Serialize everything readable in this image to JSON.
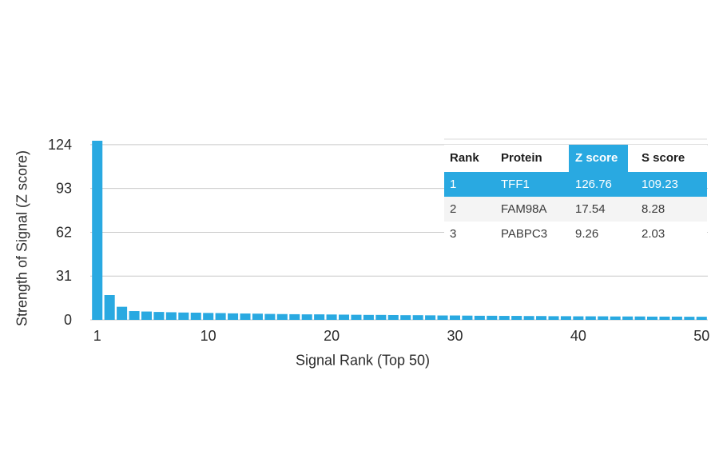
{
  "colors": {
    "accent": "#29a9e1",
    "bar": "#29a9e1",
    "grid": "#c9c9c9",
    "text": "#2b2b2b",
    "row_alt_background": "#f4f4f4",
    "highlight_text": "#ffffff"
  },
  "chart_data": {
    "type": "bar",
    "title": "",
    "xlabel": "Signal Rank (Top 50)",
    "ylabel": "Strength of Signal (Z score)",
    "x": [
      1,
      2,
      3,
      4,
      5,
      6,
      7,
      8,
      9,
      10,
      11,
      12,
      13,
      14,
      15,
      16,
      17,
      18,
      19,
      20,
      21,
      22,
      23,
      24,
      25,
      26,
      27,
      28,
      29,
      30,
      31,
      32,
      33,
      34,
      35,
      36,
      37,
      38,
      39,
      40,
      41,
      42,
      43,
      44,
      45,
      46,
      47,
      48,
      49,
      50
    ],
    "values": [
      126.76,
      17.54,
      9.26,
      6.2,
      5.9,
      5.6,
      5.4,
      5.2,
      5.1,
      4.9,
      4.8,
      4.6,
      4.5,
      4.4,
      4.2,
      4.1,
      4.0,
      3.9,
      3.9,
      3.8,
      3.7,
      3.6,
      3.5,
      3.5,
      3.4,
      3.3,
      3.3,
      3.2,
      3.1,
      3.1,
      3.0,
      2.9,
      2.9,
      2.8,
      2.8,
      2.7,
      2.7,
      2.6,
      2.6,
      2.5,
      2.5,
      2.5,
      2.4,
      2.4,
      2.4,
      2.3,
      2.3,
      2.3,
      2.2,
      2.2
    ],
    "yticks": [
      0,
      31,
      62,
      93,
      124
    ],
    "xticks": [
      1,
      10,
      20,
      30,
      40,
      50
    ],
    "ylim": [
      0,
      126.76
    ],
    "xlim": [
      1,
      50
    ],
    "grid": true,
    "legend": false,
    "bar_color": "#29a9e1"
  },
  "table": {
    "headers": [
      "Rank",
      "Protein",
      "Z score",
      "S score"
    ],
    "highlighted_column": "Z score",
    "rows": [
      {
        "rank": "1",
        "protein": "TFF1",
        "z_score": "126.76",
        "s_score": "109.23",
        "highlighted": true
      },
      {
        "rank": "2",
        "protein": "FAM98A",
        "z_score": "17.54",
        "s_score": "8.28",
        "highlighted": false
      },
      {
        "rank": "3",
        "protein": "PABPC3",
        "z_score": "9.26",
        "s_score": "2.03",
        "highlighted": false
      }
    ]
  }
}
